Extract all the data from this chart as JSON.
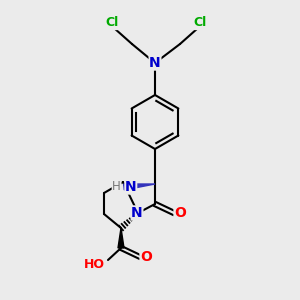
{
  "bg_color": "#ebebeb",
  "atom_colors": {
    "C": "#000000",
    "N": "#0000cc",
    "O": "#ff0000",
    "Cl": "#00aa00",
    "H": "#777777"
  },
  "bond_color": "#000000",
  "figsize": [
    3.0,
    3.0
  ],
  "dpi": 100
}
